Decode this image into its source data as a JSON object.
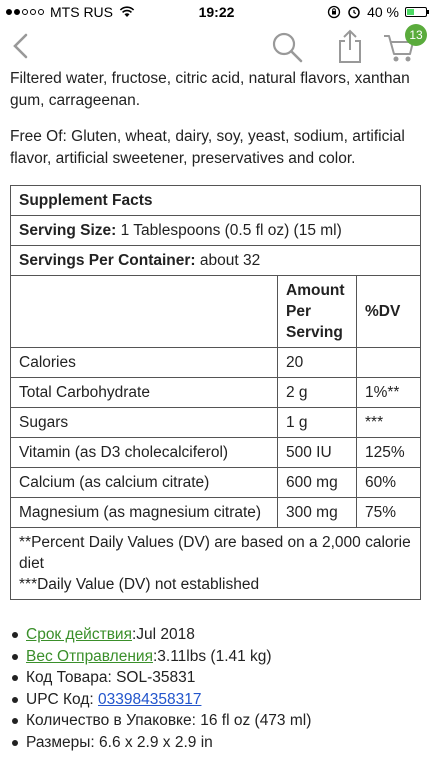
{
  "status": {
    "carrier": "MTS RUS",
    "time": "19:22",
    "battery": "40 %",
    "battery_level": 0.4
  },
  "cart": {
    "badge": "13"
  },
  "ingredients": "Filtered water, fructose, citric acid, natural flavors, xanthan gum, carrageenan.",
  "free_of": "Free Of: Gluten, wheat, dairy, soy, yeast, sodium, artificial flavor, artificial sweetener, preservatives and color.",
  "facts": {
    "title": "Supplement Facts",
    "serving_size_label": "Serving Size:",
    "serving_size_value": " 1 Tablespoons (0.5 fl oz) (15 ml)",
    "servings_label": "Servings Per Container:",
    "servings_value": " about 32",
    "header": {
      "amount": "Amount Per Serving",
      "dv": "%DV"
    },
    "rows": [
      {
        "name": "Calories",
        "amount": "20",
        "dv": ""
      },
      {
        "name": "Total Carbohydrate",
        "amount": "2 g",
        "dv": "1%**"
      },
      {
        "name": "Sugars",
        "amount": "1 g",
        "dv": "***"
      },
      {
        "name": "Vitamin (as D3 cholecalciferol)",
        "amount": "500 IU",
        "dv": "125%"
      },
      {
        "name": "Calcium (as calcium citrate)",
        "amount": "600 mg",
        "dv": "60%"
      },
      {
        "name": "Magnesium (as magnesium citrate)",
        "amount": "300 mg",
        "dv": "75%"
      }
    ],
    "footnote1": "**Percent Daily Values (DV) are based on a 2,000 calorie diet",
    "footnote2": "***Daily Value (DV) not established"
  },
  "details": {
    "expiry_label": "Срок действия",
    "expiry_value": ":Jul 2018",
    "weight_label": "Вес Отправления",
    "weight_value": ":3.11lbs (1.41 kg)",
    "code": "Код Товара: SOL-35831",
    "upc_label": "UPC Код: ",
    "upc_value": "033984358317",
    "quantity": "Количество в Упаковке: 16 fl oz (473 ml)",
    "dimensions": "Размеры: 6.6 x 2.9 x 2.9 in"
  }
}
